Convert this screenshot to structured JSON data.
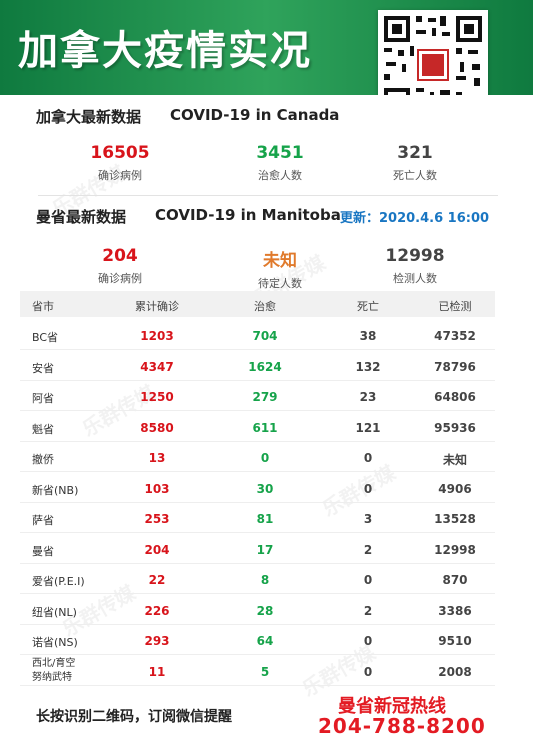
{
  "header": {
    "title": "加拿大疫情实况"
  },
  "canada": {
    "title_cn": "加拿大最新数据",
    "title_en": "COVID-19 in Canada",
    "stats": [
      {
        "value": "16505",
        "label": "确诊病例",
        "color": "#d8141b"
      },
      {
        "value": "3451",
        "label": "治愈人数",
        "color": "#16a34a"
      },
      {
        "value": "321",
        "label": "死亡人数",
        "color": "#444444"
      }
    ]
  },
  "manitoba": {
    "title_cn": "曼省最新数据",
    "title_en": "COVID-19 in Manitoba",
    "updated": "更新：2020.4.6 16:00",
    "stats": [
      {
        "value": "204",
        "label": "确诊病例",
        "color": "#d8141b"
      },
      {
        "value": "未知",
        "label": "待定人数",
        "color": "#e07a2c"
      },
      {
        "value": "12998",
        "label": "检测人数",
        "color": "#444444"
      }
    ]
  },
  "table": {
    "headers": [
      "省市",
      "累计确诊",
      "治愈",
      "死亡",
      "已检测"
    ],
    "rows": [
      {
        "prov": "BC省",
        "confirmed": "1203",
        "recovered": "704",
        "deaths": "38",
        "tested": "47352"
      },
      {
        "prov": "安省",
        "confirmed": "4347",
        "recovered": "1624",
        "deaths": "132",
        "tested": "78796"
      },
      {
        "prov": "阿省",
        "confirmed": "1250",
        "recovered": "279",
        "deaths": "23",
        "tested": "64806"
      },
      {
        "prov": "魁省",
        "confirmed": "8580",
        "recovered": "611",
        "deaths": "121",
        "tested": "95936"
      },
      {
        "prov": "撤侨",
        "confirmed": "13",
        "recovered": "0",
        "deaths": "0",
        "tested": "未知"
      },
      {
        "prov": "新省(NB)",
        "confirmed": "103",
        "recovered": "30",
        "deaths": "0",
        "tested": "4906"
      },
      {
        "prov": "萨省",
        "confirmed": "253",
        "recovered": "81",
        "deaths": "3",
        "tested": "13528"
      },
      {
        "prov": "曼省",
        "confirmed": "204",
        "recovered": "17",
        "deaths": "2",
        "tested": "12998"
      },
      {
        "prov": "爱省(P.E.I)",
        "confirmed": "22",
        "recovered": "8",
        "deaths": "0",
        "tested": "870"
      },
      {
        "prov": "纽省(NL)",
        "confirmed": "226",
        "recovered": "28",
        "deaths": "2",
        "tested": "3386"
      },
      {
        "prov": "诺省(NS)",
        "confirmed": "293",
        "recovered": "64",
        "deaths": "0",
        "tested": "9510"
      },
      {
        "prov": "西北/育空\n努纳武特",
        "confirmed": "11",
        "recovered": "5",
        "deaths": "0",
        "tested": "2008"
      }
    ]
  },
  "footer": {
    "note": "长按识别二维码，订阅微信提醒",
    "hotline_title": "曼省新冠热线",
    "hotline_number": "204-788-8200"
  }
}
